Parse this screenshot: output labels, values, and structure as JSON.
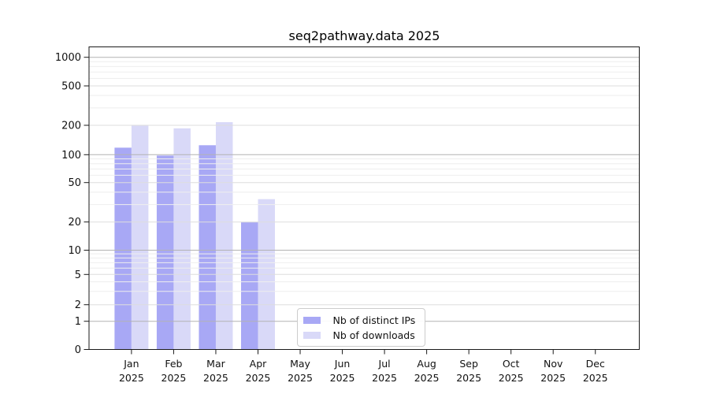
{
  "chart": {
    "title": "seq2pathway.data 2025"
  },
  "chart_data": {
    "type": "bar",
    "title": "seq2pathway.data 2025",
    "categories": [
      "Jan 2025",
      "Feb 2025",
      "Mar 2025",
      "Apr 2025",
      "May 2025",
      "Jun 2025",
      "Jul 2025",
      "Aug 2025",
      "Sep 2025",
      "Oct 2025",
      "Nov 2025",
      "Dec 2025"
    ],
    "x_tick_labels": [
      {
        "month": "Jan",
        "year": "2025"
      },
      {
        "month": "Feb",
        "year": "2025"
      },
      {
        "month": "Mar",
        "year": "2025"
      },
      {
        "month": "Apr",
        "year": "2025"
      },
      {
        "month": "May",
        "year": "2025"
      },
      {
        "month": "Jun",
        "year": "2025"
      },
      {
        "month": "Jul",
        "year": "2025"
      },
      {
        "month": "Aug",
        "year": "2025"
      },
      {
        "month": "Sep",
        "year": "2025"
      },
      {
        "month": "Oct",
        "year": "2025"
      },
      {
        "month": "Nov",
        "year": "2025"
      },
      {
        "month": "Dec",
        "year": "2025"
      }
    ],
    "series": [
      {
        "name": "Nb of distinct IPs",
        "color": "#a8a8f5",
        "values": [
          118,
          98,
          125,
          20,
          0,
          0,
          0,
          0,
          0,
          0,
          0,
          0
        ]
      },
      {
        "name": "Nb of downloads",
        "color": "#d9d9f8",
        "values": [
          198,
          186,
          215,
          34,
          0,
          0,
          0,
          0,
          0,
          0,
          0,
          0
        ]
      }
    ],
    "y_ticks": [
      0,
      1,
      2,
      5,
      10,
      20,
      50,
      100,
      200,
      500,
      1000
    ],
    "ylim": [
      0,
      1000
    ],
    "yscale": "log-like",
    "xlabel": "",
    "ylabel": "",
    "grid": true,
    "legend_position": "lower center"
  },
  "colors": {
    "bar_distinct_ips": "#a8a8f5",
    "bar_downloads": "#d9d9f8",
    "grid_decade": "#b3b3b3",
    "grid_major": "#dddddd",
    "grid_minor": "#eeeeee",
    "axis": "#1a1a1a",
    "background": "#ffffff"
  }
}
